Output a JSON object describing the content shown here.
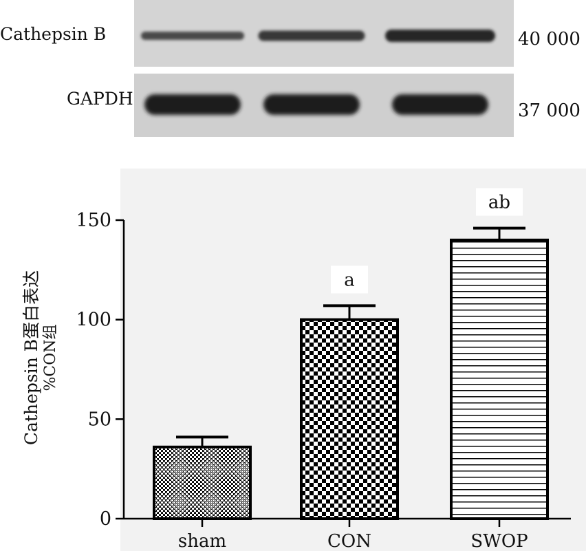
{
  "blot": {
    "rows": [
      {
        "label": "Cathepsin B",
        "mw": "40 000",
        "band_intensity": [
          0.55,
          0.7,
          0.85
        ]
      },
      {
        "label": "GAPDH",
        "mw": "37 000",
        "band_intensity": [
          0.95,
          0.95,
          0.95
        ]
      }
    ]
  },
  "chart_data": {
    "type": "bar",
    "categories": [
      "sham",
      "CON",
      "SWOP"
    ],
    "values": [
      36,
      100,
      140
    ],
    "error": [
      5,
      7,
      6
    ],
    "annotations": [
      "",
      "a",
      "ab"
    ],
    "patterns": [
      "dotted-checker",
      "checker",
      "horizontal-lines"
    ],
    "ylabel_line1": "Cathepsin B蛋白表达",
    "ylabel_line2": "%CON组",
    "ylim": [
      0,
      160
    ],
    "yticks": [
      "0",
      "50",
      "100",
      "150"
    ],
    "ytick_values": [
      0,
      50,
      100,
      150
    ],
    "grid": false,
    "colors": {
      "plot_bg": "#f2f2f2",
      "bar_fill": "#ffffff",
      "ink": "#000000"
    }
  }
}
